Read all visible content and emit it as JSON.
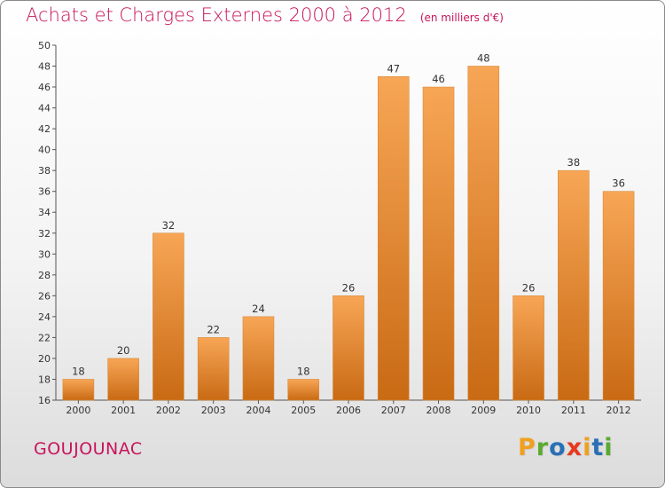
{
  "header": {
    "title": "Achats et Charges Externes 2000 à 2012",
    "subtitle": "(en milliers d'€)"
  },
  "footer": {
    "commune": "GOUJOUNAC",
    "logo": "Proxiti",
    "logo_letters": [
      {
        "char": "P",
        "color": "#f0a020"
      },
      {
        "char": "r",
        "color": "#5aaa32"
      },
      {
        "char": "o",
        "color": "#2a6fb5"
      },
      {
        "char": "x",
        "color": "#e8381e"
      },
      {
        "char": "i",
        "color": "#f0a020"
      },
      {
        "char": "t",
        "color": "#2a6fb5"
      },
      {
        "char": "i",
        "color": "#5aaa32"
      }
    ]
  },
  "chart_data": {
    "type": "bar",
    "title": "Achats et Charges Externes 2000 à 2012",
    "subtitle": "(en milliers d'€)",
    "categories": [
      "2000",
      "2001",
      "2002",
      "2003",
      "2004",
      "2005",
      "2006",
      "2007",
      "2008",
      "2009",
      "2010",
      "2011",
      "2012"
    ],
    "values": [
      18,
      20,
      32,
      22,
      24,
      18,
      26,
      47,
      46,
      48,
      26,
      38,
      36
    ],
    "ylim": [
      16,
      50
    ],
    "yticks": [
      16,
      18,
      20,
      22,
      24,
      26,
      28,
      30,
      32,
      34,
      36,
      38,
      40,
      42,
      44,
      46,
      48,
      50
    ],
    "grid": false,
    "bar_color_light": "#f7a656",
    "bar_color_dark": "#c96a14"
  }
}
